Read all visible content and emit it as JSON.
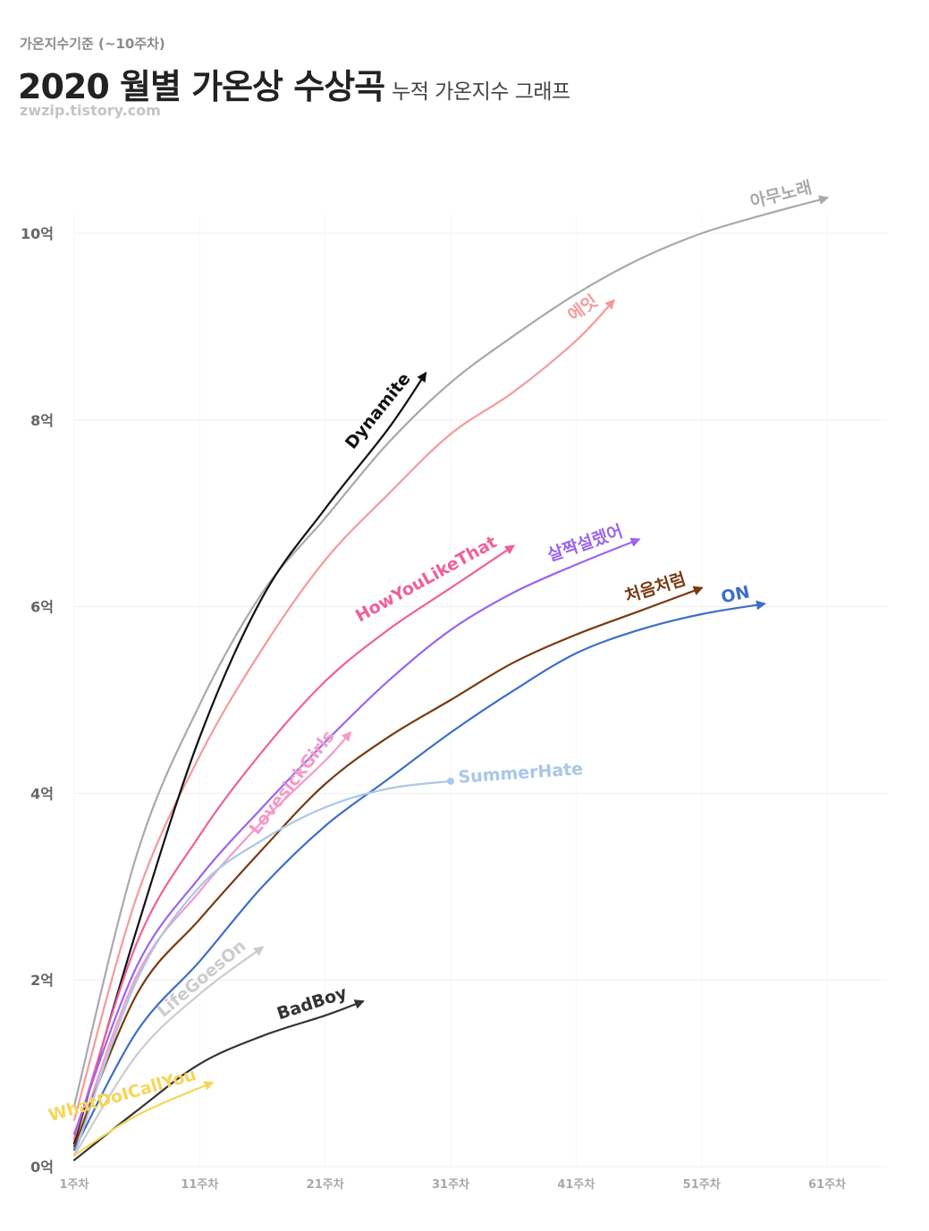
{
  "header": {
    "kicker": "가온지수기준 (~10주차)",
    "title": "2020 월별 가온상 수상곡",
    "subtitle": "누적 가온지수 그래프",
    "source": "zwzip.tistory.com"
  },
  "chart_data": {
    "type": "line",
    "title": "2020 월별 가온상 수상곡",
    "subtitle": "누적 가온지수 그래프",
    "ylim": [
      0,
      10.5
    ],
    "xlim": [
      1,
      64
    ],
    "yticks": [
      {
        "v": 0,
        "label": "0억"
      },
      {
        "v": 2,
        "label": "2억"
      },
      {
        "v": 4,
        "label": "4억"
      },
      {
        "v": 6,
        "label": "6억"
      },
      {
        "v": 8,
        "label": "8억"
      },
      {
        "v": 10,
        "label": "10억"
      }
    ],
    "xticks": [
      {
        "v": 1,
        "label": "1주차"
      },
      {
        "v": 11,
        "label": "11주차"
      },
      {
        "v": 21,
        "label": "21주차"
      },
      {
        "v": 31,
        "label": "31주차"
      },
      {
        "v": 41,
        "label": "41주차"
      },
      {
        "v": 51,
        "label": "51주차"
      },
      {
        "v": 61,
        "label": "61주차"
      }
    ],
    "grid": true,
    "series": [
      {
        "name": "아무노래",
        "color": "#a9a9a9",
        "end": "arrow",
        "label_rot": -14,
        "x": [
          1,
          6,
          11,
          16,
          21,
          26,
          31,
          36,
          41,
          46,
          51,
          56,
          61
        ],
        "y": [
          0.65,
          3.35,
          4.95,
          6.15,
          6.95,
          7.75,
          8.4,
          8.9,
          9.35,
          9.72,
          10.0,
          10.2,
          10.38
        ]
      },
      {
        "name": "에잇",
        "color": "#f59a9a",
        "end": "arrow",
        "label_rot": -36,
        "x": [
          1,
          6,
          11,
          16,
          21,
          26,
          31,
          36,
          41,
          44
        ],
        "y": [
          0.5,
          2.9,
          4.4,
          5.55,
          6.5,
          7.2,
          7.85,
          8.3,
          8.85,
          9.28
        ]
      },
      {
        "name": "Dynamite",
        "color": "#111111",
        "end": "arrow",
        "label_rot": -51,
        "x": [
          1,
          6,
          11,
          16,
          21,
          26,
          29
        ],
        "y": [
          0.25,
          2.55,
          4.6,
          6.1,
          7.05,
          7.9,
          8.5
        ]
      },
      {
        "name": "HowYouLikeThat",
        "color": "#f0609c",
        "end": "arrow",
        "label_rot": -29,
        "x": [
          1,
          6,
          11,
          16,
          21,
          26,
          31,
          36
        ],
        "y": [
          0.3,
          2.4,
          3.55,
          4.45,
          5.2,
          5.75,
          6.2,
          6.65
        ]
      },
      {
        "name": "살짝설렜어",
        "color": "#9966ee",
        "end": "arrow",
        "label_rot": -19,
        "x": [
          1,
          6,
          11,
          16,
          21,
          26,
          31,
          36,
          41,
          46
        ],
        "y": [
          0.35,
          2.15,
          3.1,
          3.85,
          4.55,
          5.2,
          5.75,
          6.15,
          6.45,
          6.72
        ]
      },
      {
        "name": "LovesickGirls",
        "color": "#f59ac8",
        "end": "arrow",
        "label_rot": -52,
        "x": [
          1,
          6,
          11,
          16,
          21,
          23
        ],
        "y": [
          0.2,
          2.05,
          2.95,
          3.7,
          4.35,
          4.65
        ]
      },
      {
        "name": "처음처럼",
        "color": "#7a3a10",
        "end": "arrow",
        "label_rot": -17,
        "x": [
          1,
          6,
          11,
          16,
          21,
          26,
          31,
          36,
          41,
          46,
          51
        ],
        "y": [
          0.22,
          1.85,
          2.65,
          3.4,
          4.1,
          4.6,
          5.0,
          5.4,
          5.7,
          5.95,
          6.2
        ]
      },
      {
        "name": "ON",
        "color": "#3d6ec9",
        "end": "arrow",
        "label_rot": -12,
        "x": [
          1,
          6,
          11,
          16,
          21,
          26,
          31,
          36,
          41,
          46,
          51,
          56
        ],
        "y": [
          0.18,
          1.45,
          2.2,
          3.0,
          3.65,
          4.15,
          4.65,
          5.1,
          5.5,
          5.75,
          5.92,
          6.03
        ]
      },
      {
        "name": "SummerHate",
        "color": "#a9c7e6",
        "end": "dot",
        "label_rot": -4,
        "x": [
          1,
          6,
          11,
          16,
          21,
          26,
          31
        ],
        "y": [
          0.12,
          2.0,
          3.0,
          3.5,
          3.85,
          4.05,
          4.13
        ]
      },
      {
        "name": "LifeGoesOn",
        "color": "#cccccc",
        "end": "arrow",
        "label_rot": -40,
        "x": [
          1,
          6,
          11,
          16
        ],
        "y": [
          0.12,
          1.2,
          1.85,
          2.35
        ]
      },
      {
        "name": "BadBoy",
        "color": "#333333",
        "end": "arrow",
        "label_rot": -18,
        "x": [
          1,
          6,
          11,
          16,
          21,
          24
        ],
        "y": [
          0.07,
          0.6,
          1.1,
          1.4,
          1.62,
          1.77
        ]
      },
      {
        "name": "WhatDoICallYou",
        "color": "#f8d558",
        "end": "arrow",
        "label_rot": -16,
        "x": [
          1,
          6,
          12
        ],
        "y": [
          0.12,
          0.55,
          0.9
        ]
      }
    ]
  }
}
